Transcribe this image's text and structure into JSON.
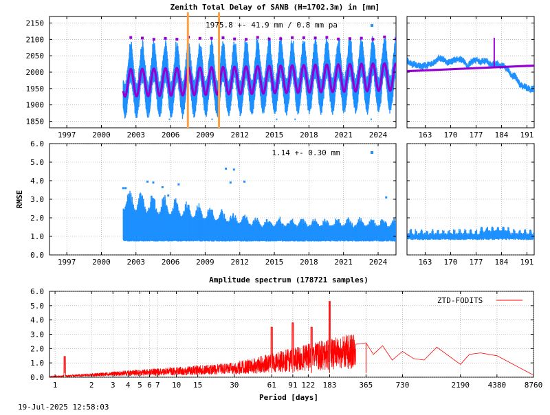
{
  "chart_data": [
    {
      "type": "scatter",
      "title": "Zenith Total Delay of SANB (H=1702.3m) in [mm]",
      "annotation": "1975.8 +-  41.9 mm /  0.8 mm pa",
      "ylim": [
        1830,
        2170
      ],
      "yticks": [
        1850,
        1900,
        1950,
        2000,
        2050,
        2100,
        2150
      ],
      "xlim": [
        1995.5,
        2025.55
      ],
      "xticks": [
        1997,
        2000,
        2003,
        2006,
        2009,
        2012,
        2015,
        2018,
        2021,
        2024
      ],
      "series": [
        {
          "role": "observations",
          "color": "#1e90ff",
          "data_start": 2001.9,
          "data_end": 2025.55,
          "mean": 1975.8,
          "annual_amplitude": 55,
          "peak_high": 2105,
          "trough_low": 1860
        },
        {
          "role": "model-fit",
          "color": "#9400d3",
          "mean": 1975.8,
          "annual_amplitude": 42,
          "trend_per_year": 0.8
        }
      ],
      "vertical_lines": [
        2007.5,
        2010.2
      ],
      "vertical_line_color": "#ffa040",
      "grid": true
    },
    {
      "type": "scatter",
      "ylim": [
        1830,
        2170
      ],
      "xlim": [
        158,
        193
      ],
      "xticks": [
        163,
        170,
        177,
        184,
        191
      ],
      "series": [
        {
          "role": "observations",
          "color": "#1e90ff"
        },
        {
          "role": "trend",
          "color": "#9400d3",
          "y_start": 2003,
          "y_end": 2020
        }
      ],
      "grid": true
    },
    {
      "type": "scatter",
      "ylabel": "RMSE",
      "annotation": "1.14 +-  0.30 mm",
      "ylim": [
        0,
        6
      ],
      "yticks": [
        "0.0",
        "1.0",
        "2.0",
        "3.0",
        "4.0",
        "5.0",
        "6.0"
      ],
      "xlim": [
        1995.5,
        2025.55
      ],
      "xticks": [
        1997,
        2000,
        2003,
        2006,
        2009,
        2012,
        2015,
        2018,
        2021,
        2024
      ],
      "series": [
        {
          "role": "rmse",
          "color": "#1e90ff",
          "data_start": 2001.9,
          "data_end": 2025.55,
          "mean": 1.14,
          "std": 0.3
        }
      ],
      "outliers": [
        [
          2001.9,
          3.6
        ],
        [
          2002.1,
          3.6
        ],
        [
          2004.0,
          3.95
        ],
        [
          2004.5,
          3.9
        ],
        [
          2005.3,
          3.65
        ],
        [
          2005.8,
          3.2
        ],
        [
          2006.7,
          3.8
        ],
        [
          2010.8,
          4.65
        ],
        [
          2011.5,
          4.6
        ],
        [
          2011.2,
          3.9
        ],
        [
          2012.4,
          3.95
        ],
        [
          2024.7,
          3.1
        ]
      ],
      "grid": true
    },
    {
      "type": "scatter",
      "ylim": [
        0,
        6
      ],
      "xlim": [
        158,
        193
      ],
      "xticks": [
        163,
        170,
        177,
        184,
        191
      ],
      "series": [
        {
          "role": "rmse",
          "color": "#1e90ff",
          "mean": 1.0
        }
      ],
      "grid": true
    },
    {
      "type": "line",
      "title": "Amplitude spectrum (178721 samples)",
      "xlabel": "Period [days]",
      "xscale": "log",
      "xlim": [
        0.9,
        8760
      ],
      "ylim": [
        0,
        6
      ],
      "yticks": [
        "0.0",
        "1.0",
        "2.0",
        "3.0",
        "4.0",
        "5.0",
        "6.0"
      ],
      "xticks": [
        1,
        2,
        3,
        4,
        5,
        6,
        7,
        10,
        15,
        30,
        61,
        91,
        122,
        183,
        365,
        730,
        2190,
        4380,
        8760
      ],
      "legend": "top-right",
      "series": [
        {
          "name": "ZTD-FODITS",
          "color": "#ff0000",
          "peaks": [
            [
              1.2,
              1.45
            ],
            [
              365,
              2.35
            ],
            [
              183,
              5.3
            ],
            [
              130,
              3.5
            ],
            [
              91,
              3.8
            ],
            [
              61,
              3.5
            ]
          ],
          "long_period": [
            [
              300,
              2.3
            ],
            [
              365,
              2.4
            ],
            [
              420,
              1.6
            ],
            [
              500,
              2.2
            ],
            [
              600,
              1.2
            ],
            [
              730,
              1.8
            ],
            [
              900,
              1.3
            ],
            [
              1100,
              1.2
            ],
            [
              1400,
              2.1
            ],
            [
              2190,
              0.9
            ],
            [
              2600,
              1.6
            ],
            [
              3200,
              1.7
            ],
            [
              4380,
              1.5
            ],
            [
              8760,
              0.15
            ]
          ]
        }
      ],
      "grid": true
    }
  ],
  "footer": {
    "timestamp": "19-Jul-2025 12:58:03"
  }
}
